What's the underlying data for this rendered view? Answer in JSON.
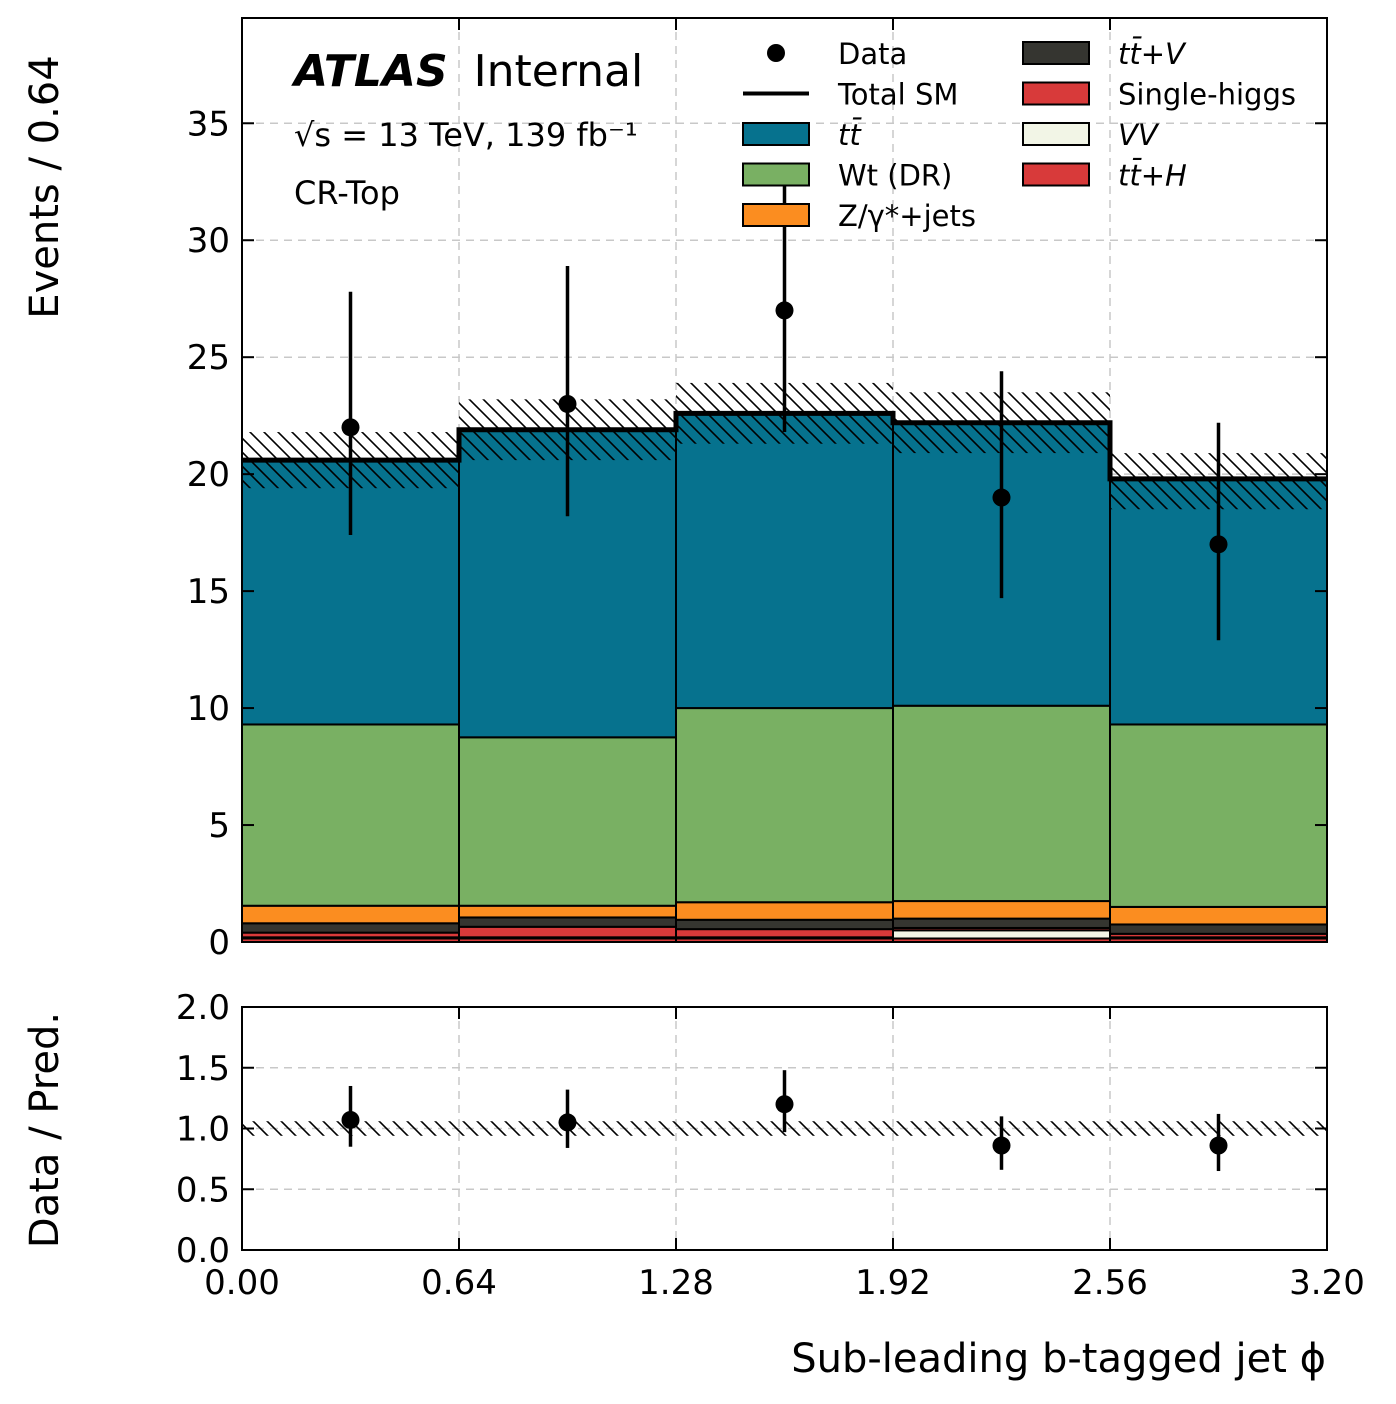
{
  "chart_data": [
    {
      "type": "bar",
      "stacked": true,
      "panel": "main",
      "bin_edges": [
        0.0,
        0.64,
        1.28,
        1.92,
        2.56,
        3.2
      ],
      "ylabel": "Events / 0.64",
      "ylim": [
        0,
        39.5
      ],
      "yticks": [
        "0",
        "5",
        "10",
        "15",
        "20",
        "25",
        "30",
        "35"
      ],
      "yticks_values": [
        0,
        5,
        10,
        15,
        20,
        25,
        30,
        35
      ],
      "grid": true,
      "legend_position": "top-right",
      "experiment": "ATLAS",
      "status": "Internal",
      "energy_label": "√s = 13 TeV, 139 fb⁻¹",
      "region": "CR-Top",
      "series": [
        {
          "name": "tt̄+H",
          "color": "#d83a3a",
          "values": [
            0.15,
            0.15,
            0.15,
            0.15,
            0.15
          ]
        },
        {
          "name": "VV",
          "color": "#f2f5e6",
          "values": [
            0.05,
            0.05,
            0.05,
            0.35,
            0.05
          ]
        },
        {
          "name": "Single-higgs",
          "color": "#d83a3a",
          "values": [
            0.2,
            0.45,
            0.35,
            0.1,
            0.15
          ]
        },
        {
          "name": "tt̄+V",
          "color": "#353530",
          "values": [
            0.4,
            0.4,
            0.4,
            0.4,
            0.4
          ]
        },
        {
          "name": "Z/γ*+jets",
          "color": "#fb8d20",
          "values": [
            0.75,
            0.5,
            0.75,
            0.75,
            0.75
          ]
        },
        {
          "name": "Wt (DR)",
          "color": "#79b063",
          "values": [
            7.75,
            7.2,
            8.3,
            8.35,
            7.8
          ]
        },
        {
          "name": "tt̄",
          "color": "#06728e",
          "values": [
            11.3,
            13.15,
            12.6,
            12.1,
            10.5
          ]
        }
      ],
      "total_sm": [
        20.6,
        21.9,
        22.6,
        22.2,
        19.8
      ],
      "uncertainty_band": {
        "up": [
          21.8,
          23.2,
          23.9,
          23.5,
          20.9
        ],
        "down": [
          19.4,
          20.6,
          21.3,
          20.9,
          18.5
        ]
      },
      "data": {
        "name": "Data",
        "x": [
          0.32,
          0.96,
          1.6,
          2.24,
          2.88
        ],
        "y": [
          22,
          23,
          27,
          19,
          17
        ],
        "err_up": [
          5.8,
          5.9,
          6.3,
          5.4,
          5.2
        ],
        "err_down": [
          4.6,
          4.8,
          5.2,
          4.3,
          4.1
        ]
      },
      "legend": {
        "col1": [
          "Data",
          "Total SM",
          "tt̄",
          "Wt (DR)",
          "Z/γ*+jets"
        ],
        "col2": [
          "tt̄+V",
          "Single-higgs",
          "VV",
          "tt̄+H"
        ]
      }
    },
    {
      "type": "scatter",
      "panel": "ratio",
      "xlabel": "Sub-leading b-tagged jet ϕ",
      "ylabel": "Data / Pred.",
      "xlim": [
        0,
        3.2
      ],
      "ylim": [
        0,
        2
      ],
      "xticks": [
        "0.00",
        "0.64",
        "1.28",
        "1.92",
        "2.56",
        "3.20"
      ],
      "xticks_values": [
        0,
        0.64,
        1.28,
        1.92,
        2.56,
        3.2
      ],
      "yticks": [
        "0.0",
        "0.5",
        "1.0",
        "1.5",
        "2.0"
      ],
      "yticks_values": [
        0,
        0.5,
        1,
        1.5,
        2
      ],
      "x": [
        0.32,
        0.96,
        1.6,
        2.24,
        2.88
      ],
      "y": [
        1.07,
        1.05,
        1.2,
        0.86,
        0.86
      ],
      "err_up": [
        0.28,
        0.27,
        0.28,
        0.24,
        0.26
      ],
      "err_down": [
        0.22,
        0.21,
        0.23,
        0.2,
        0.21
      ],
      "band": {
        "up": [
          1.06,
          1.06,
          1.06,
          1.06,
          1.06
        ],
        "down": [
          0.94,
          0.94,
          0.94,
          0.94,
          0.94
        ]
      }
    }
  ]
}
